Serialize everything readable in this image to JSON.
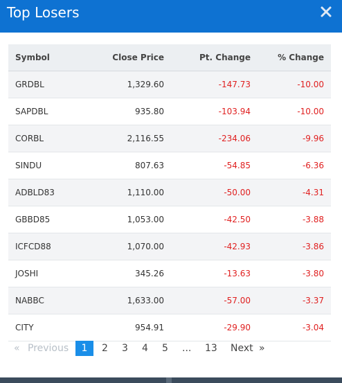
{
  "modal": {
    "title": "Top Losers"
  },
  "table": {
    "headers": [
      "Symbol",
      "Close Price",
      "Pt. Change",
      "% Change"
    ],
    "rows": [
      [
        "GRDBL",
        "1,329.60",
        "-147.73",
        "-10.00"
      ],
      [
        "SAPDBL",
        "935.80",
        "-103.94",
        "-10.00"
      ],
      [
        "CORBL",
        "2,116.55",
        "-234.06",
        "-9.96"
      ],
      [
        "SINDU",
        "807.63",
        "-54.85",
        "-6.36"
      ],
      [
        "ADBLD83",
        "1,110.00",
        "-50.00",
        "-4.31"
      ],
      [
        "GBBD85",
        "1,053.00",
        "-42.50",
        "-3.88"
      ],
      [
        "ICFCD88",
        "1,070.00",
        "-42.93",
        "-3.86"
      ],
      [
        "JOSHI",
        "345.26",
        "-13.63",
        "-3.80"
      ],
      [
        "NABBC",
        "1,633.00",
        "-57.00",
        "-3.37"
      ],
      [
        "CITY",
        "954.91",
        "-29.90",
        "-3.04"
      ]
    ]
  },
  "pagination": {
    "prev_arrow": "«",
    "prev_label": "Previous",
    "pages": [
      "1",
      "2",
      "3",
      "4",
      "5"
    ],
    "ellipsis": "...",
    "last_page": "13",
    "next_label": "Next",
    "next_arrow": "»",
    "current_page": "1"
  },
  "colors": {
    "header_bg": "#0e72d2",
    "negative": "#e02020",
    "active_page": "#1a8ee8"
  },
  "icons": {
    "close": "close-icon"
  }
}
